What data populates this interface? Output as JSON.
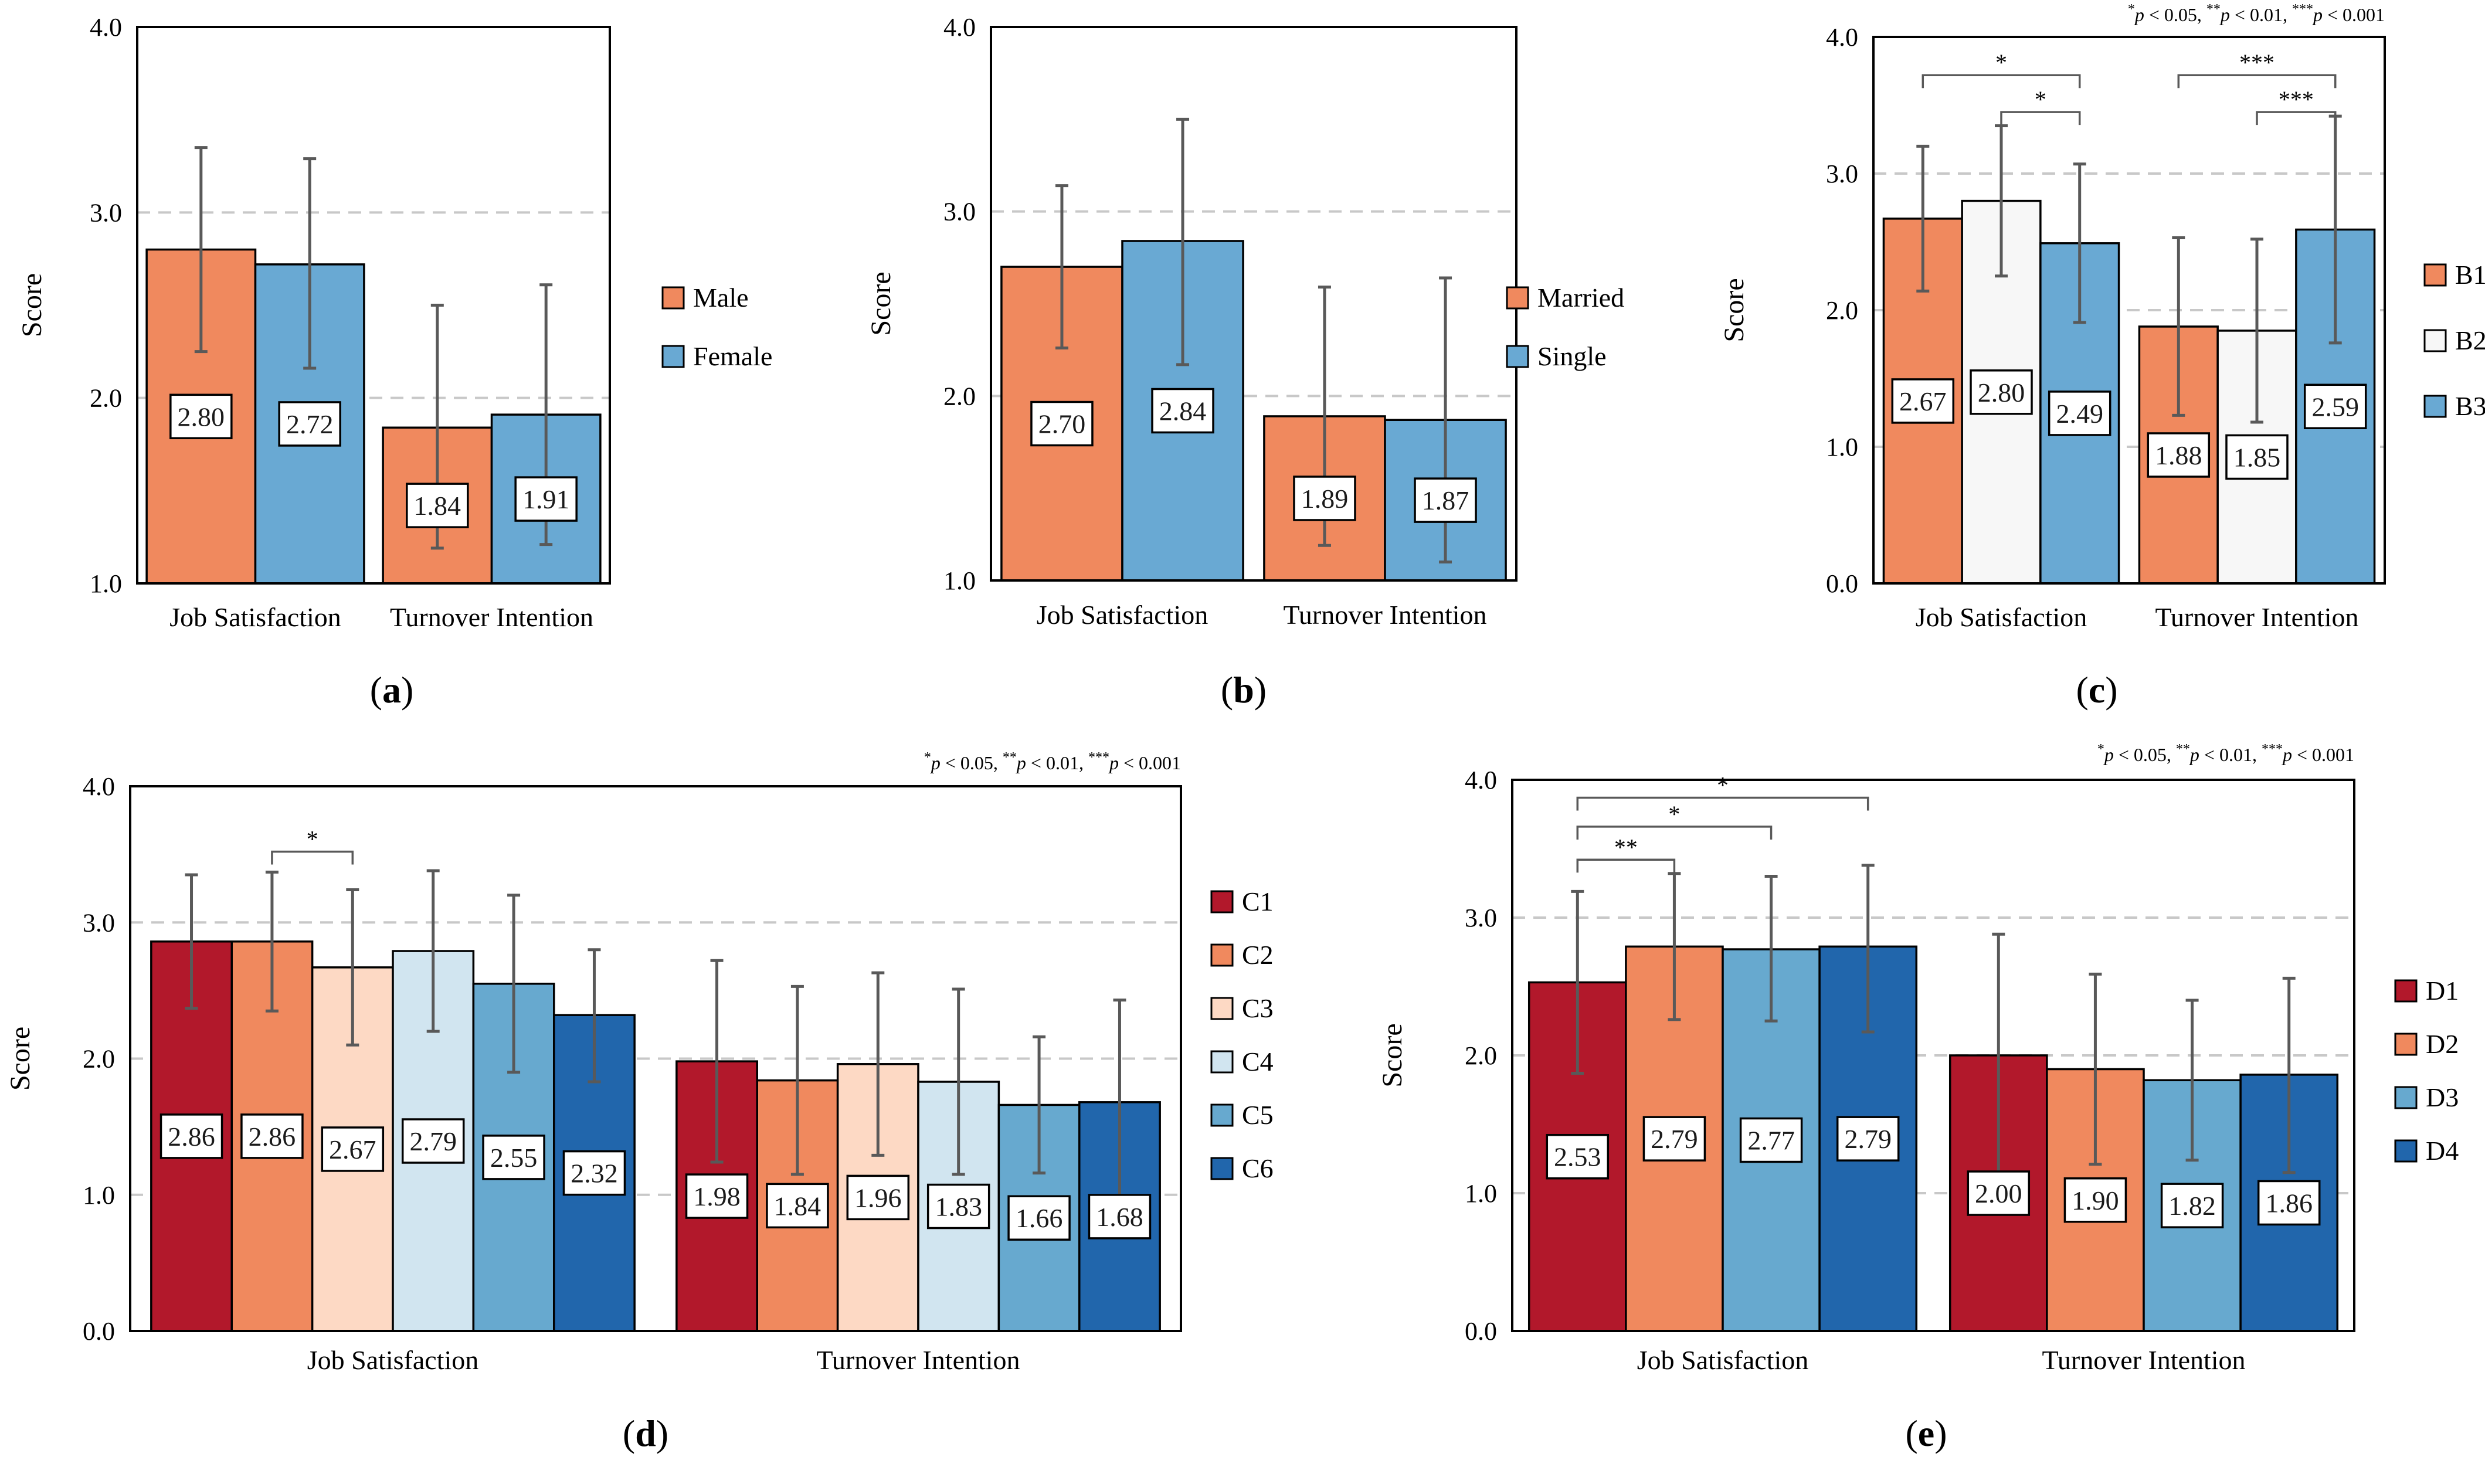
{
  "figure": {
    "colors": {
      "grid": "#c8c8c8",
      "frame": "#000000",
      "error_bar": "#595959",
      "label_box_border": "#000000",
      "label_box_fill": "#ffffff"
    },
    "significance_note": [
      "*",
      "p",
      " < 0.05, ",
      "**",
      "p",
      " < 0.01, ",
      "***",
      "p",
      " < 0.001"
    ]
  },
  "chart_data": [
    {
      "type": "bar",
      "panel": "(a)",
      "ylabel": "Score",
      "ylim": [
        1.0,
        4.0
      ],
      "yticks": [
        "1.0",
        "2.0",
        "3.0",
        "4.0"
      ],
      "grid": true,
      "legend_position": "right",
      "categories": [
        "Job Satisfaction",
        "Turnover Intention"
      ],
      "series": [
        {
          "name": "Male",
          "color": "#f0895e",
          "values": [
            2.8,
            1.84
          ],
          "labels": [
            "2.80",
            "1.84"
          ],
          "error_low": [
            2.25,
            1.19
          ],
          "error_high": [
            3.35,
            2.5
          ]
        },
        {
          "name": "Female",
          "color": "#69a9d3",
          "values": [
            2.72,
            1.91
          ],
          "labels": [
            "2.72",
            "1.91"
          ],
          "error_low": [
            2.16,
            1.21
          ],
          "error_high": [
            3.29,
            2.61
          ]
        }
      ],
      "brackets": [],
      "note": false
    },
    {
      "type": "bar",
      "panel": "(b)",
      "ylabel": "Score",
      "ylim": [
        1.0,
        4.0
      ],
      "yticks": [
        "1.0",
        "2.0",
        "3.0",
        "4.0"
      ],
      "grid": true,
      "legend_position": "right",
      "categories": [
        "Job Satisfaction",
        "Turnover Intention"
      ],
      "series": [
        {
          "name": "Married",
          "color": "#f0895e",
          "values": [
            2.7,
            1.89
          ],
          "labels": [
            "2.70",
            "1.89"
          ],
          "error_low": [
            2.26,
            1.19
          ],
          "error_high": [
            3.14,
            2.59
          ]
        },
        {
          "name": "Single",
          "color": "#69a9d3",
          "values": [
            2.84,
            1.87
          ],
          "labels": [
            "2.84",
            "1.87"
          ],
          "error_low": [
            2.17,
            1.1
          ],
          "error_high": [
            3.5,
            2.64
          ]
        }
      ],
      "brackets": [],
      "note": false
    },
    {
      "type": "bar",
      "panel": "(c)",
      "ylabel": "Score",
      "ylim": [
        0.0,
        4.0
      ],
      "yticks": [
        "0.0",
        "1.0",
        "2.0",
        "3.0",
        "4.0"
      ],
      "grid": true,
      "legend_position": "right",
      "categories": [
        "Job Satisfaction",
        "Turnover Intention"
      ],
      "series": [
        {
          "name": "B1",
          "color": "#f0895e",
          "values": [
            2.67,
            1.88
          ],
          "labels": [
            "2.67",
            "1.88"
          ],
          "error_low": [
            2.14,
            1.23
          ],
          "error_high": [
            3.2,
            2.53
          ]
        },
        {
          "name": "B2",
          "color": "#f7f7f7",
          "values": [
            2.8,
            1.85
          ],
          "labels": [
            "2.80",
            "1.85"
          ],
          "error_low": [
            2.25,
            1.18
          ],
          "error_high": [
            3.35,
            2.52
          ]
        },
        {
          "name": "B3",
          "color": "#69a9d3",
          "values": [
            2.49,
            2.59
          ],
          "labels": [
            "2.49",
            "2.59"
          ],
          "error_low": [
            1.91,
            1.76
          ],
          "error_high": [
            3.07,
            3.42
          ]
        }
      ],
      "brackets": [
        {
          "category": 0,
          "from": 0,
          "to": 2,
          "y": 3.72,
          "label": "*"
        },
        {
          "category": 0,
          "from": 1,
          "to": 2,
          "y": 3.45,
          "label": "*"
        },
        {
          "category": 1,
          "from": 0,
          "to": 2,
          "y": 3.72,
          "label": "***"
        },
        {
          "category": 1,
          "from": 1,
          "to": 2,
          "y": 3.45,
          "label": "***"
        }
      ],
      "note": true
    },
    {
      "type": "bar",
      "panel": "(d)",
      "ylabel": "Score",
      "ylim": [
        0.0,
        4.0
      ],
      "yticks": [
        "0.0",
        "1.0",
        "2.0",
        "3.0",
        "4.0"
      ],
      "grid": true,
      "legend_position": "right",
      "categories": [
        "Job Satisfaction",
        "Turnover Intention"
      ],
      "series": [
        {
          "name": "C1",
          "color": "#b2182b",
          "values": [
            2.86,
            1.98
          ],
          "labels": [
            "2.86",
            "1.98"
          ],
          "error_low": [
            2.37,
            1.24
          ],
          "error_high": [
            3.35,
            2.72
          ]
        },
        {
          "name": "C2",
          "color": "#f0895e",
          "values": [
            2.86,
            1.84
          ],
          "labels": [
            "2.86",
            "1.84"
          ],
          "error_low": [
            2.35,
            1.15
          ],
          "error_high": [
            3.37,
            2.53
          ]
        },
        {
          "name": "C3",
          "color": "#fdd9c4",
          "values": [
            2.67,
            1.96
          ],
          "labels": [
            "2.67",
            "1.96"
          ],
          "error_low": [
            2.1,
            1.29
          ],
          "error_high": [
            3.24,
            2.63
          ]
        },
        {
          "name": "C4",
          "color": "#d1e5f0",
          "values": [
            2.79,
            1.83
          ],
          "labels": [
            "2.79",
            "1.83"
          ],
          "error_low": [
            2.2,
            1.15
          ],
          "error_high": [
            3.38,
            2.51
          ]
        },
        {
          "name": "C5",
          "color": "#67a9cf",
          "values": [
            2.55,
            1.66
          ],
          "labels": [
            "2.55",
            "1.66"
          ],
          "error_low": [
            1.9,
            1.16
          ],
          "error_high": [
            3.2,
            2.16
          ]
        },
        {
          "name": "C6",
          "color": "#2166ac",
          "values": [
            2.32,
            1.68
          ],
          "labels": [
            "2.32",
            "1.68"
          ],
          "error_low": [
            1.83,
            0.93
          ],
          "error_high": [
            2.8,
            2.43
          ]
        }
      ],
      "brackets": [
        {
          "category": 0,
          "from": 1,
          "to": 2,
          "y": 3.52,
          "label": "*"
        }
      ],
      "note": true
    },
    {
      "type": "bar",
      "panel": "(e)",
      "ylabel": "Score",
      "ylim": [
        0.0,
        4.0
      ],
      "yticks": [
        "0.0",
        "1.0",
        "2.0",
        "3.0",
        "4.0"
      ],
      "grid": true,
      "legend_position": "right",
      "categories": [
        "Job Satisfaction",
        "Turnover Intention"
      ],
      "series": [
        {
          "name": "D1",
          "color": "#b2182b",
          "values": [
            2.53,
            2.0
          ],
          "labels": [
            "2.53",
            "2.00"
          ],
          "error_low": [
            1.87,
            1.12
          ],
          "error_high": [
            3.19,
            2.88
          ]
        },
        {
          "name": "D2",
          "color": "#f0895e",
          "values": [
            2.79,
            1.9
          ],
          "labels": [
            "2.79",
            "1.90"
          ],
          "error_low": [
            2.26,
            1.21
          ],
          "error_high": [
            3.32,
            2.59
          ]
        },
        {
          "name": "D3",
          "color": "#67a9cf",
          "values": [
            2.77,
            1.82
          ],
          "labels": [
            "2.77",
            "1.82"
          ],
          "error_low": [
            2.25,
            1.24
          ],
          "error_high": [
            3.3,
            2.4
          ]
        },
        {
          "name": "D4",
          "color": "#2166ac",
          "values": [
            2.79,
            1.86
          ],
          "labels": [
            "2.79",
            "1.86"
          ],
          "error_low": [
            2.17,
            1.15
          ],
          "error_high": [
            3.38,
            2.56
          ]
        }
      ],
      "brackets": [
        {
          "category": 0,
          "from": 0,
          "to": 1,
          "y": 3.42,
          "label": "**"
        },
        {
          "category": 0,
          "from": 0,
          "to": 2,
          "y": 3.66,
          "label": "*"
        },
        {
          "category": 0,
          "from": 0,
          "to": 3,
          "y": 3.87,
          "label": "*"
        }
      ],
      "note": true
    }
  ]
}
